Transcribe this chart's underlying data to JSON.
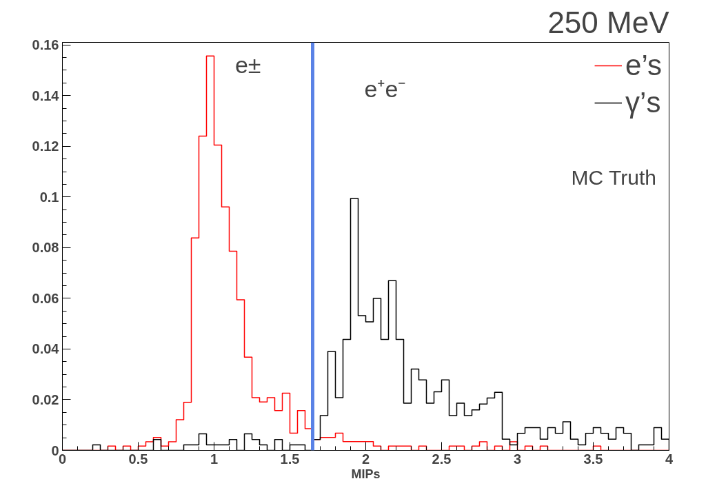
{
  "chart_data": {
    "type": "histogram",
    "title": "250 MeV",
    "xlabel": "MIPs",
    "bins": [
      0,
      0.05,
      0.1,
      0.15,
      0.2,
      0.25,
      0.3,
      0.35,
      0.4,
      0.45,
      0.5,
      0.55,
      0.6,
      0.65,
      0.7,
      0.75,
      0.8,
      0.85,
      0.9,
      0.95,
      1,
      1.05,
      1.1,
      1.15,
      1.2,
      1.25,
      1.3,
      1.35,
      1.4,
      1.45,
      1.5,
      1.55,
      1.6,
      1.65,
      1.7,
      1.75,
      1.8,
      1.85,
      1.9,
      1.95,
      2,
      2.05,
      2.1,
      2.15,
      2.2,
      2.25,
      2.3,
      2.35,
      2.4,
      2.45,
      2.5,
      2.55,
      2.6,
      2.65,
      2.7,
      2.75,
      2.8,
      2.85,
      2.9,
      2.95,
      3,
      3.05,
      3.1,
      3.15,
      3.2,
      3.25,
      3.3,
      3.35,
      3.4,
      3.45,
      3.5,
      3.55,
      3.6,
      3.65,
      3.7,
      3.75,
      3.8,
      3.85,
      3.9,
      3.95,
      4
    ],
    "series": [
      {
        "name": "e’s",
        "color": "#ff0000",
        "values": [
          0,
          0,
          0,
          0,
          0,
          0,
          0.0017,
          0,
          0.0017,
          0,
          0.0017,
          0.0034,
          0.0051,
          0.0017,
          0.0034,
          0.0121,
          0.019,
          0.0838,
          0.124,
          0.1556,
          0.1205,
          0.0961,
          0.0786,
          0.0594,
          0.0368,
          0.0208,
          0.0191,
          0.0208,
          0.0157,
          0.0226,
          0.0068,
          0.0157,
          0.0086,
          0.0043,
          0.0051,
          0.0051,
          0.0068,
          0.0035,
          0.0035,
          0.0035,
          0.0035,
          0.0017,
          0,
          0.0017,
          0.0017,
          0.0017,
          0,
          0.0017,
          0,
          0,
          0,
          0.0017,
          0.0017,
          0,
          0.0017,
          0.0034,
          0,
          0.0017,
          0,
          0.0034,
          0,
          0.0017,
          0,
          0.0017,
          0,
          0,
          0,
          0,
          0,
          0,
          0.0017,
          0,
          0,
          0,
          0,
          0,
          0,
          0,
          0,
          0
        ]
      },
      {
        "name": "γ’s",
        "color": "#000000",
        "values": [
          0,
          0,
          0,
          0,
          0.0022,
          0,
          0,
          0,
          0,
          0,
          0,
          0,
          0.0043,
          0,
          0,
          0,
          0.0022,
          0.0022,
          0.0065,
          0.0022,
          0.0022,
          0.0022,
          0.0043,
          0,
          0.0065,
          0.0043,
          0.0022,
          0,
          0.0043,
          0,
          0.0022,
          0.0022,
          0,
          0.0043,
          0.0137,
          0.039,
          0.0208,
          0.0438,
          0.0994,
          0.0532,
          0.0507,
          0.06,
          0.0438,
          0.067,
          0.0438,
          0.0186,
          0.0321,
          0.0278,
          0.0186,
          0.0231,
          0.0278,
          0.0137,
          0.0186,
          0.0137,
          0.016,
          0.0183,
          0.0207,
          0.0229,
          0.0044,
          0.0022,
          0.0067,
          0.009,
          0.009,
          0.0044,
          0.009,
          0.0067,
          0.0113,
          0.0044,
          0.0022,
          0.0067,
          0.009,
          0.0067,
          0.0044,
          0.009,
          0.0067,
          0,
          0.0022,
          0.0022,
          0.009,
          0.0044
        ]
      }
    ],
    "xlim": [
      0,
      4
    ],
    "ylim": [
      0,
      0.161
    ],
    "xticks": [
      0,
      0.5,
      1,
      1.5,
      2,
      2.5,
      3,
      3.5,
      4
    ],
    "yticks": [
      0,
      0.02,
      0.04,
      0.06,
      0.08,
      0.1,
      0.12,
      0.14,
      0.16
    ],
    "ref_lines": [
      {
        "axis": "x",
        "value": 1.65,
        "color": "#5a82e6"
      }
    ],
    "annotations": [
      "e±",
      "e⁺e⁻",
      "MC Truth"
    ],
    "legend": "top right",
    "grid": false
  }
}
